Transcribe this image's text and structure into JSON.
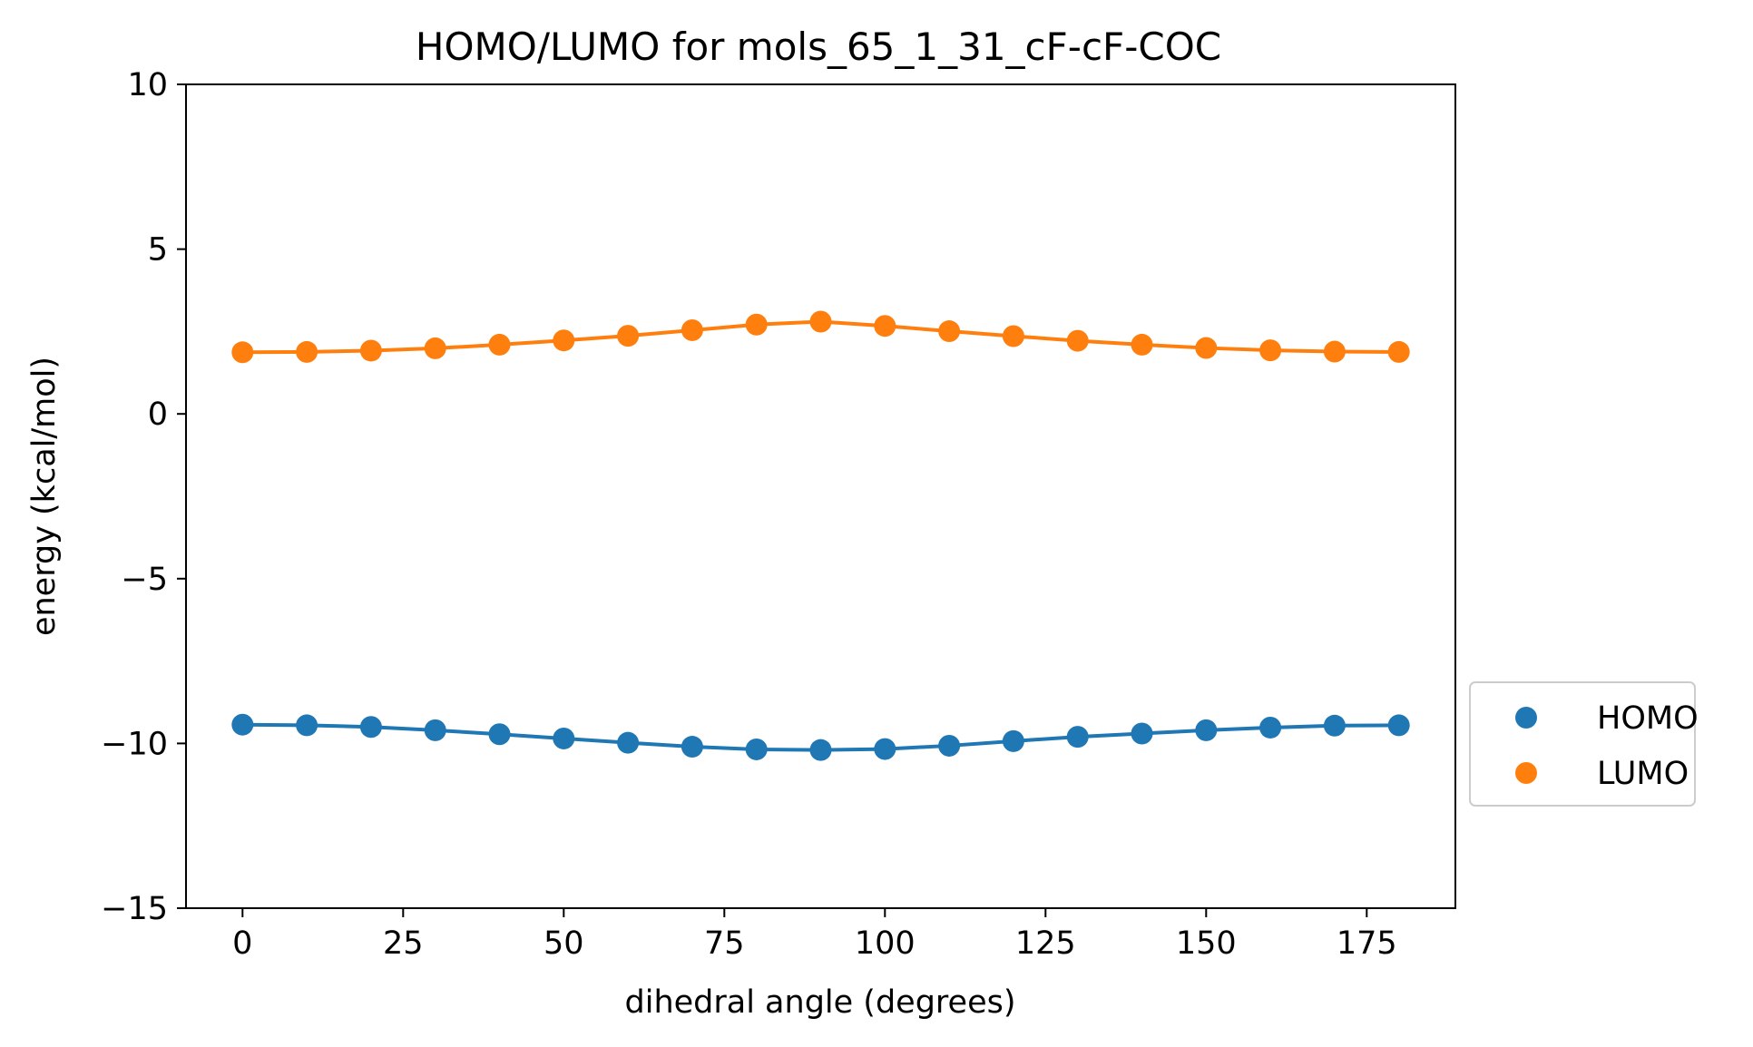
{
  "chart_data": {
    "type": "line",
    "title": "HOMO/LUMO for mols_65_1_31_cF-cF-COC",
    "xlabel": "dihedral angle (degrees)",
    "ylabel": "energy (kcal/mol)",
    "xlim": [
      -8.8,
      188.8
    ],
    "ylim": [
      -15,
      10
    ],
    "xticks": [
      0,
      25,
      50,
      75,
      100,
      125,
      150,
      175
    ],
    "yticks": [
      10,
      5,
      0,
      -5,
      -10,
      -15
    ],
    "xtick_labels": [
      "0",
      "25",
      "50",
      "75",
      "100",
      "125",
      "150",
      "175"
    ],
    "ytick_labels": [
      "10",
      "5",
      "0",
      "−5",
      "−10",
      "−15"
    ],
    "grid": false,
    "legend_position": "outside right, bottom",
    "x": [
      0,
      10,
      20,
      30,
      40,
      50,
      60,
      70,
      80,
      90,
      100,
      110,
      120,
      130,
      140,
      150,
      160,
      170,
      180
    ],
    "series": [
      {
        "name": "HOMO",
        "color": "#1f77b4",
        "values": [
          -9.43,
          -9.45,
          -9.5,
          -9.6,
          -9.72,
          -9.85,
          -9.98,
          -10.1,
          -10.18,
          -10.2,
          -10.17,
          -10.07,
          -9.93,
          -9.8,
          -9.7,
          -9.6,
          -9.52,
          -9.46,
          -9.45
        ]
      },
      {
        "name": "LUMO",
        "color": "#ff7f0e",
        "values": [
          1.87,
          1.88,
          1.92,
          1.99,
          2.1,
          2.23,
          2.37,
          2.54,
          2.71,
          2.8,
          2.67,
          2.51,
          2.36,
          2.22,
          2.1,
          2.0,
          1.93,
          1.89,
          1.88
        ]
      }
    ]
  }
}
